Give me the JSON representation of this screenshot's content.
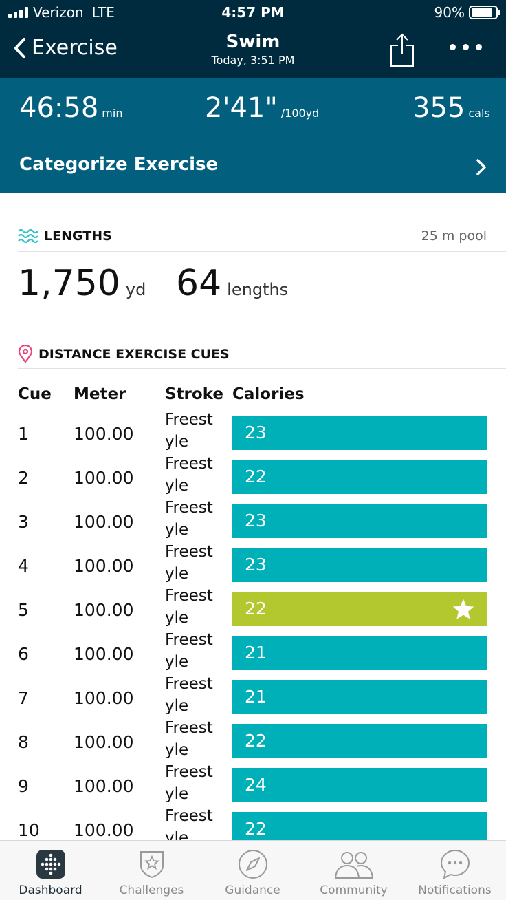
{
  "status": {
    "carrier": "Verizon",
    "network": "LTE",
    "time": "4:57 PM",
    "battery": "90%",
    "battery_level": 0.9
  },
  "nav": {
    "back_label": "Exercise",
    "title": "Swim",
    "subtitle": "Today, 3:51 PM",
    "icons": [
      "chevron-left-icon",
      "share-icon",
      "more-icon"
    ]
  },
  "summary": {
    "duration_value": "46:58",
    "duration_unit": "min",
    "pace_value": "2'41\"",
    "pace_unit": "/100yd",
    "calories_value": "355",
    "calories_unit": "cals",
    "categorize_label": "Categorize Exercise"
  },
  "lengths": {
    "title": "LENGTHS",
    "pool": "25 m pool",
    "distance_value": "1,750",
    "distance_unit": "yd",
    "count_value": "64",
    "count_unit": "lengths"
  },
  "cues": {
    "title": "DISTANCE EXERCISE CUES",
    "headers": [
      "Cue",
      "Meter",
      "Stroke",
      "Calories"
    ],
    "rows": [
      {
        "cue": "1",
        "meter": "100.00",
        "stroke": "Freestyle",
        "calories": "23"
      },
      {
        "cue": "2",
        "meter": "100.00",
        "stroke": "Freestyle",
        "calories": "22"
      },
      {
        "cue": "3",
        "meter": "100.00",
        "stroke": "Freestyle",
        "calories": "23"
      },
      {
        "cue": "4",
        "meter": "100.00",
        "stroke": "Freestyle",
        "calories": "23"
      },
      {
        "cue": "5",
        "meter": "100.00",
        "stroke": "Freestyle",
        "calories": "22",
        "best": true
      },
      {
        "cue": "6",
        "meter": "100.00",
        "stroke": "Freestyle",
        "calories": "21"
      },
      {
        "cue": "7",
        "meter": "100.00",
        "stroke": "Freestyle",
        "calories": "21"
      },
      {
        "cue": "8",
        "meter": "100.00",
        "stroke": "Freestyle",
        "calories": "22"
      },
      {
        "cue": "9",
        "meter": "100.00",
        "stroke": "Freestyle",
        "calories": "24"
      },
      {
        "cue": "10",
        "meter": "100.00",
        "stroke": "Freestyle",
        "calories": "22"
      }
    ]
  },
  "tabs": [
    {
      "label": "Dashboard",
      "icon": "dashboard-icon",
      "active": true
    },
    {
      "label": "Challenges",
      "icon": "challenges-icon"
    },
    {
      "label": "Guidance",
      "icon": "guidance-icon"
    },
    {
      "label": "Community",
      "icon": "community-icon"
    },
    {
      "label": "Notifications",
      "icon": "notifications-icon"
    }
  ],
  "colors": {
    "header_dark": "#002a3d",
    "summary_band": "#02607e",
    "bar_teal": "#00b0b9",
    "bar_best": "#b3c72f",
    "waves": "#34c3c9",
    "pin": "#e8457a"
  }
}
